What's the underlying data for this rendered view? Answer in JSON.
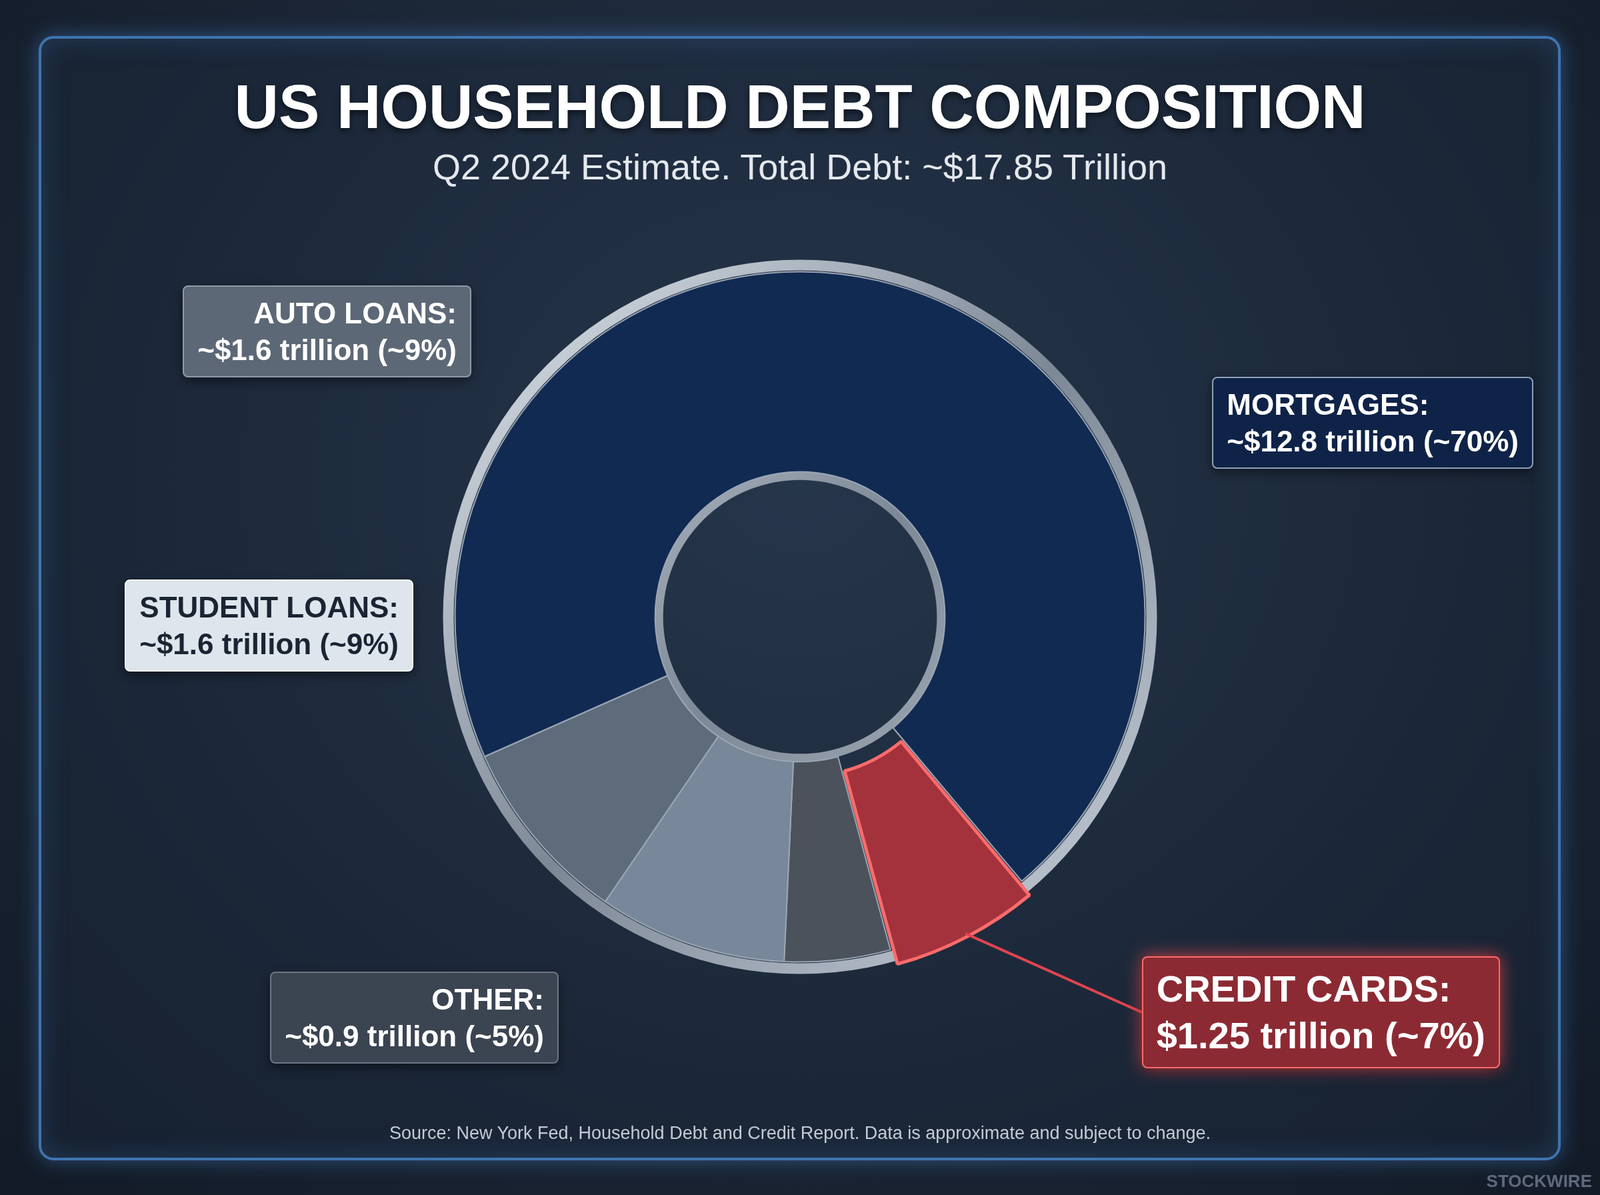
{
  "chart_data": {
    "type": "doughnut",
    "title": "US HOUSEHOLD DEBT COMPOSITION",
    "subtitle": "Q2 2024 Estimate. Total Debt: ~$17.85 Trillion",
    "categories": [
      "CREDIT CARDS:",
      "OTHER:",
      "STUDENT LOANS:",
      "AUTO LOANS:",
      "MORTGAGES:"
    ],
    "values": [
      1.25,
      0.9,
      1.6,
      1.6,
      12.8
    ],
    "value_labels": [
      "$1.25 trillion (~7%)",
      "~$0.9 trillion (~5%)",
      "~$1.6 trillion (~9%)",
      "~$1.6 trillion (~9%)",
      "~$12.8 trillion (~70%)"
    ],
    "colors": [
      "#a3323c",
      "#4b525c",
      "#78879a",
      "#5e6b7b",
      "#112a52"
    ],
    "data_labels": true,
    "annotations": [
      "Source: New York Fed, Household Debt and Credit Report. Data is approximate and subject to change.",
      "STOCKWIRE"
    ]
  }
}
